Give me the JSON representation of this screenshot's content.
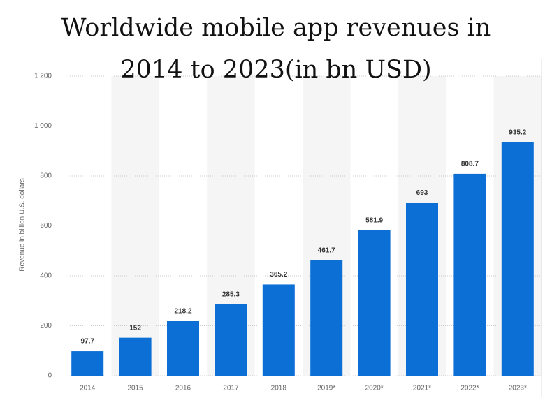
{
  "chart_data": {
    "type": "bar",
    "title": "Worldwide mobile app revenues in 2014 to 2023(in bn USD)",
    "y_label": "Revenue in billion U.S. dollars",
    "categories": [
      "2014",
      "2015",
      "2016",
      "2017",
      "2018",
      "2019*",
      "2020*",
      "2021*",
      "2022*",
      "2023*"
    ],
    "values": [
      97.7,
      152,
      218.2,
      285.3,
      365.2,
      461.7,
      581.9,
      693,
      808.7,
      935.2
    ],
    "color": "#0b6fd6",
    "ylim": [
      0,
      1200
    ],
    "yticks": [
      0,
      200,
      400,
      600,
      800,
      {
        "value": 1000,
        "label": "1 000"
      },
      {
        "value": 1200,
        "label": "1 200"
      }
    ],
    "grid": true
  }
}
